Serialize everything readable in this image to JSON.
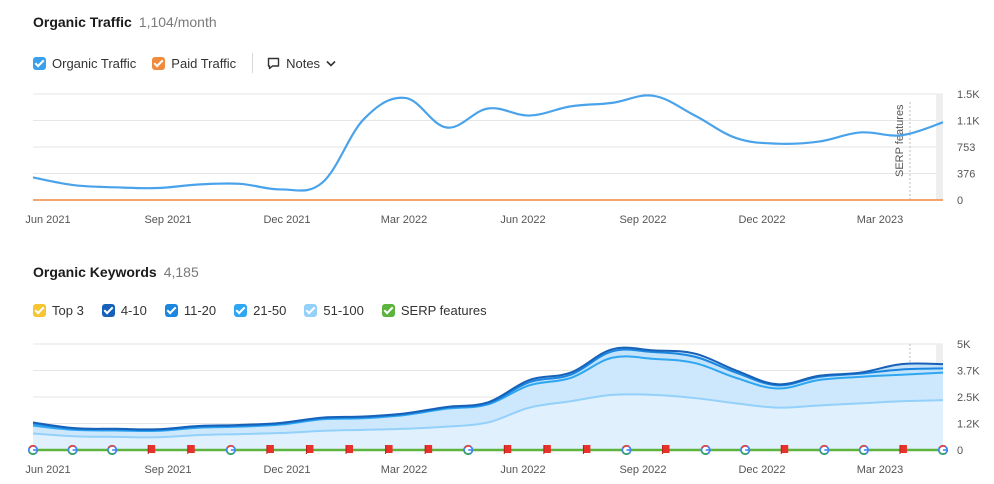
{
  "traffic_section": {
    "title": "Organic Traffic",
    "metric": "1,104/month",
    "legend": [
      {
        "label": "Organic Traffic",
        "color": "#3aa0ee"
      },
      {
        "label": "Paid Traffic",
        "color": "#f08a3c"
      }
    ],
    "notes_label": "Notes"
  },
  "keywords_section": {
    "title": "Organic Keywords",
    "metric": "4,185",
    "legend": [
      {
        "label": "Top 3",
        "color": "#f7c531"
      },
      {
        "label": "4-10",
        "color": "#1761b8"
      },
      {
        "label": "11-20",
        "color": "#1a86e0"
      },
      {
        "label": "21-50",
        "color": "#2fa6f2"
      },
      {
        "label": "51-100",
        "color": "#93d0fa"
      },
      {
        "label": "SERP features",
        "color": "#5db33e"
      }
    ]
  },
  "serp_annotation": "SERP features",
  "chart_data": [
    {
      "type": "line",
      "title": "Organic Traffic",
      "x_tick_labels": [
        "Jun 2021",
        "Sep 2021",
        "Dec 2021",
        "Mar 2022",
        "Jun 2022",
        "Sep 2022",
        "Dec 2022",
        "Mar 2023"
      ],
      "y_tick_labels": [
        "0",
        "376",
        "753",
        "1.1K",
        "1.5K"
      ],
      "ylim": [
        0,
        1506
      ],
      "x": [
        "2021-06",
        "2021-07",
        "2021-08",
        "2021-09",
        "2021-10",
        "2021-11",
        "2021-12",
        "2022-01",
        "2022-02",
        "2022-03",
        "2022-04",
        "2022-05",
        "2022-06",
        "2022-07",
        "2022-08",
        "2022-09",
        "2022-10",
        "2022-11",
        "2022-12",
        "2023-01",
        "2023-02",
        "2023-03",
        "2023-04"
      ],
      "series": [
        {
          "name": "Organic Traffic",
          "color": "#4aa3ea",
          "values": [
            320,
            210,
            180,
            170,
            220,
            230,
            150,
            250,
            1150,
            1450,
            1030,
            1300,
            1200,
            1330,
            1380,
            1480,
            1200,
            880,
            800,
            830,
            960,
            920,
            1104
          ]
        },
        {
          "name": "Paid Traffic",
          "color": "#f08a3c",
          "values": [
            0,
            0,
            0,
            0,
            0,
            0,
            0,
            0,
            0,
            0,
            0,
            0,
            0,
            0,
            0,
            0,
            0,
            0,
            0,
            0,
            0,
            0,
            0
          ]
        }
      ]
    },
    {
      "type": "area",
      "title": "Organic Keywords",
      "x_tick_labels": [
        "Jun 2021",
        "Sep 2021",
        "Dec 2021",
        "Mar 2022",
        "Jun 2022",
        "Sep 2022",
        "Dec 2022",
        "Mar 2023"
      ],
      "y_tick_labels": [
        "0",
        "1.2K",
        "2.5K",
        "3.7K",
        "5K"
      ],
      "ylim": [
        0,
        5000
      ],
      "x": [
        "2021-06",
        "2021-07",
        "2021-08",
        "2021-09",
        "2021-10",
        "2021-11",
        "2021-12",
        "2022-01",
        "2022-02",
        "2022-03",
        "2022-04",
        "2022-05",
        "2022-06",
        "2022-07",
        "2022-08",
        "2022-09",
        "2022-10",
        "2022-11",
        "2022-12",
        "2023-01",
        "2023-02",
        "2023-03",
        "2023-04"
      ],
      "series": [
        {
          "name": "51-100",
          "color": "#93d0fa",
          "values": [
            780,
            650,
            620,
            600,
            700,
            750,
            800,
            900,
            950,
            1000,
            1100,
            1300,
            2000,
            2300,
            2600,
            2600,
            2450,
            2200,
            2000,
            2100,
            2200,
            2300,
            2350
          ]
        },
        {
          "name": "21-50",
          "color": "#2fa6f2",
          "values": [
            1150,
            950,
            920,
            900,
            1050,
            1100,
            1200,
            1450,
            1500,
            1650,
            1950,
            2150,
            3050,
            3400,
            4350,
            4300,
            4100,
            3400,
            2900,
            3300,
            3450,
            3550,
            3650
          ]
        },
        {
          "name": "11-20",
          "color": "#1a86e0",
          "values": [
            1250,
            1000,
            970,
            950,
            1100,
            1150,
            1250,
            1500,
            1550,
            1700,
            2000,
            2200,
            3200,
            3550,
            4650,
            4620,
            4400,
            3650,
            3050,
            3450,
            3600,
            3800,
            3850
          ]
        },
        {
          "name": "4-10",
          "color": "#1761b8",
          "values": [
            1300,
            1030,
            1000,
            980,
            1130,
            1180,
            1280,
            1530,
            1580,
            1730,
            2030,
            2250,
            3300,
            3650,
            4750,
            4700,
            4550,
            3750,
            3100,
            3500,
            3650,
            4050,
            4050
          ]
        }
      ],
      "serp_features_markers": [
        "google",
        "google",
        "google",
        "flag",
        "flag",
        "google",
        "flag",
        "flag",
        "flag",
        "flag",
        "flag",
        "google",
        "flag",
        "flag",
        "flag",
        "google",
        "flag",
        "google",
        "google",
        "flag",
        "google",
        "google",
        "flag",
        "google"
      ]
    }
  ]
}
